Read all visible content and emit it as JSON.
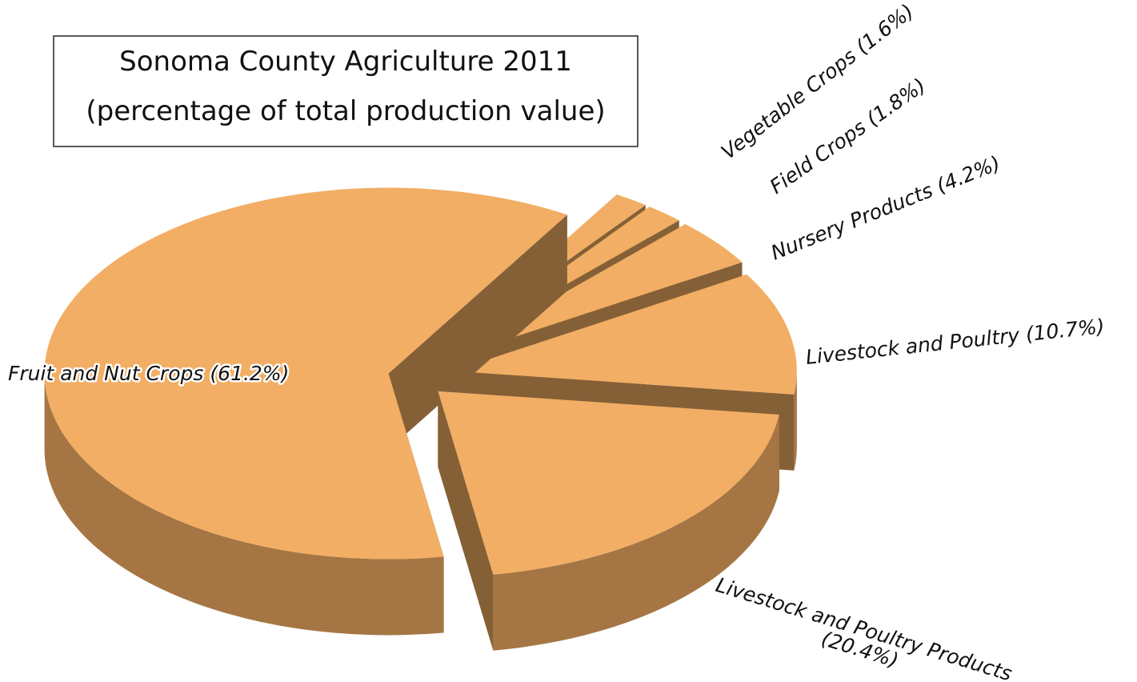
{
  "chart_data": {
    "type": "pie3d",
    "title": "Sonoma County Agriculture 2011",
    "subtitle": "(percentage of total production value)",
    "categories": [
      "Fruit and Nut Crops",
      "Livestock and Poultry Products",
      "Livestock and Poultry",
      "Nursery Products",
      "Field Crops",
      "Vegetable Crops"
    ],
    "values": [
      61.2,
      20.4,
      10.7,
      4.2,
      1.8,
      1.6
    ],
    "value_labels": [
      "(61.2%)",
      "(20.4%)",
      "(10.7%)",
      "(4.2%)",
      "(1.8%)",
      "(1.6%)"
    ],
    "color": "#f2ae64"
  }
}
